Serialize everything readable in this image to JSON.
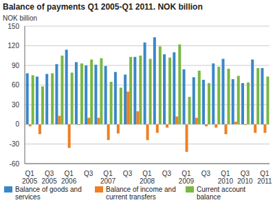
{
  "chart_data": {
    "type": "bar",
    "title": "Balance of payments Q1 2005-Q1 2011. NOK billion",
    "y_label": "NOK billion",
    "categories": [
      "Q1 2005",
      null,
      "Q3 2005",
      null,
      "Q1 2006",
      null,
      "Q3",
      null,
      "Q1 2007",
      null,
      "Q3",
      null,
      "Q1 2008",
      null,
      "Q3",
      null,
      "Q1 2009",
      null,
      "Q3",
      null,
      "Q1 2010",
      null,
      "Q3 2010",
      null,
      "Q1 2011"
    ],
    "series": [
      {
        "name": "Balance of goods and services",
        "color": "#3a87c8",
        "values": [
          78,
          73,
          77,
          92,
          114,
          95,
          90,
          91,
          89,
          80,
          76,
          103,
          125,
          133,
          107,
          110,
          84,
          72,
          68,
          93,
          100,
          69,
          63,
          99,
          86
        ]
      },
      {
        "name": "Balance of income and current transfers",
        "color": "#f07f22",
        "values": [
          -3,
          -15,
          0,
          13,
          -36,
          -1,
          10,
          10,
          -24,
          -14,
          50,
          20,
          -24,
          -13,
          -5,
          12,
          -42,
          10,
          -3,
          -5,
          -15,
          4,
          -1,
          -13,
          -13
        ]
      },
      {
        "name": "Current account balance",
        "color": "#78b843",
        "values": [
          75,
          58,
          78,
          105,
          79,
          93,
          99,
          101,
          65,
          56,
          103,
          105,
          100,
          119,
          102,
          122,
          42,
          82,
          63,
          88,
          85,
          74,
          64,
          86,
          73
        ]
      }
    ],
    "ylim": [
      -60,
      150
    ],
    "yticks": [
      -60,
      -30,
      0,
      30,
      60,
      90,
      120,
      150
    ],
    "grid": true,
    "legend": "bottom"
  }
}
